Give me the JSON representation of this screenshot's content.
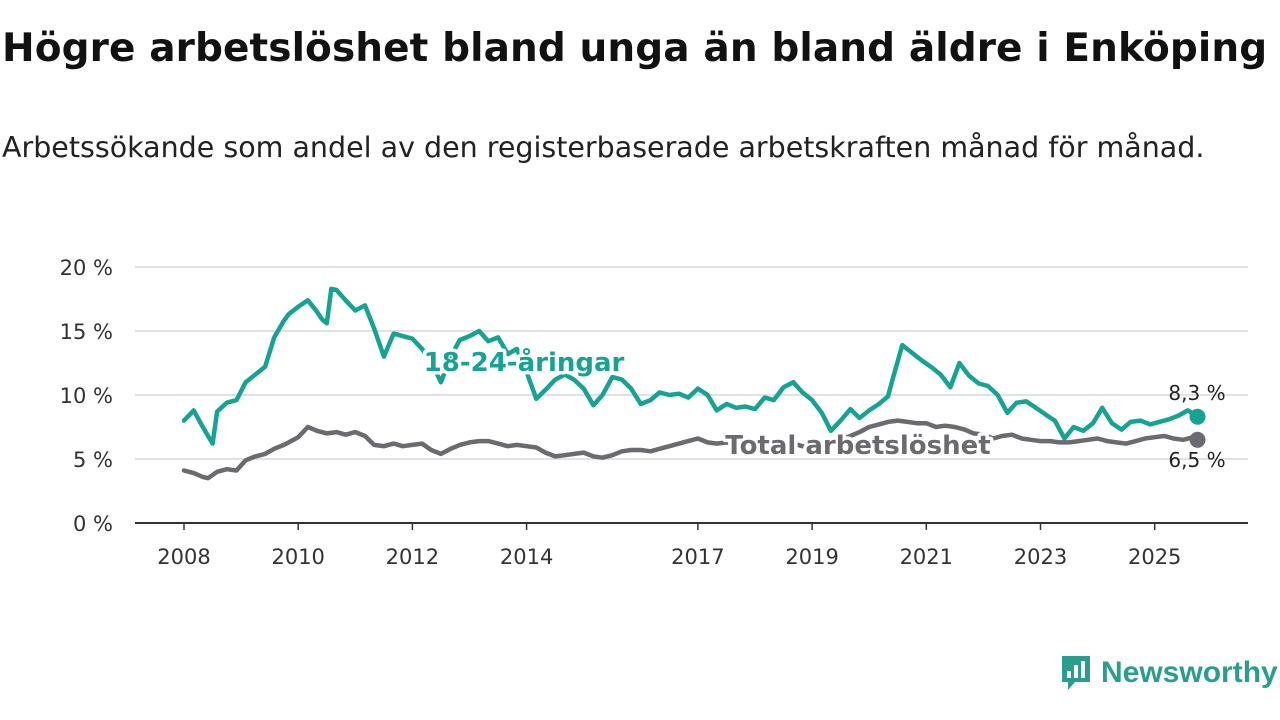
{
  "title": "Högre arbetslöshet bland unga än bland äldre i Enköping",
  "subtitle": "Arbetssökande som andel av den registerbaserade arbetskraften månad för månad.",
  "brand": {
    "name": "Newsworthy",
    "icon": "newsworthy-logo-icon"
  },
  "chart_data": {
    "type": "line",
    "xlim": [
      2008.0,
      2026.3
    ],
    "ylim": [
      0,
      20
    ],
    "y_ticks": [
      {
        "value": 0,
        "label": "0 %"
      },
      {
        "value": 5,
        "label": "5 %"
      },
      {
        "value": 10,
        "label": "10 %"
      },
      {
        "value": 15,
        "label": "15 %"
      },
      {
        "value": 20,
        "label": "20 %"
      }
    ],
    "x_ticks": [
      {
        "value": 2008,
        "label": "2008"
      },
      {
        "value": 2010,
        "label": "2010"
      },
      {
        "value": 2012,
        "label": "2012"
      },
      {
        "value": 2014,
        "label": "2014"
      },
      {
        "value": 2017,
        "label": "2017"
      },
      {
        "value": 2019,
        "label": "2019"
      },
      {
        "value": 2021,
        "label": "2021"
      },
      {
        "value": 2023,
        "label": "2023"
      },
      {
        "value": 2025,
        "label": "2025"
      }
    ],
    "grid": true,
    "series": [
      {
        "name": "18-24-åringar",
        "color": "#16a394",
        "end_label": "8,3 %",
        "x": [
          2008.0,
          2008.17,
          2008.33,
          2008.5,
          2008.58,
          2008.75,
          2008.92,
          2009.08,
          2009.25,
          2009.42,
          2009.58,
          2009.75,
          2009.83,
          2010.0,
          2010.17,
          2010.33,
          2010.42,
          2010.5,
          2010.58,
          2010.67,
          2010.83,
          2011.0,
          2011.17,
          2011.33,
          2011.5,
          2011.67,
          2011.83,
          2012.0,
          2012.17,
          2012.33,
          2012.5,
          2012.67,
          2012.83,
          2013.0,
          2013.17,
          2013.33,
          2013.5,
          2013.67,
          2013.83,
          2014.0,
          2014.17,
          2014.33,
          2014.5,
          2014.67,
          2014.83,
          2015.0,
          2015.17,
          2015.33,
          2015.5,
          2015.67,
          2015.83,
          2016.0,
          2016.17,
          2016.33,
          2016.5,
          2016.67,
          2016.83,
          2017.0,
          2017.17,
          2017.33,
          2017.5,
          2017.67,
          2017.83,
          2018.0,
          2018.17,
          2018.33,
          2018.5,
          2018.67,
          2018.83,
          2019.0,
          2019.17,
          2019.33,
          2019.5,
          2019.67,
          2019.83,
          2020.0,
          2020.17,
          2020.33,
          2020.42,
          2020.58,
          2020.75,
          2020.92,
          2021.08,
          2021.25,
          2021.42,
          2021.58,
          2021.75,
          2021.92,
          2022.08,
          2022.25,
          2022.42,
          2022.58,
          2022.75,
          2022.92,
          2023.08,
          2023.25,
          2023.42,
          2023.58,
          2023.75,
          2023.92,
          2024.08,
          2024.25,
          2024.42,
          2024.58,
          2024.75,
          2024.92,
          2025.08,
          2025.25,
          2025.42,
          2025.58,
          2025.75
        ],
        "y": [
          8.0,
          8.8,
          7.5,
          6.2,
          8.7,
          9.4,
          9.6,
          11.0,
          11.6,
          12.2,
          14.5,
          15.8,
          16.3,
          16.9,
          17.4,
          16.5,
          15.9,
          15.6,
          18.3,
          18.2,
          17.4,
          16.6,
          17.0,
          15.2,
          13.0,
          14.8,
          14.6,
          14.4,
          13.6,
          12.6,
          11.0,
          13.0,
          14.3,
          14.6,
          15.0,
          14.2,
          14.5,
          13.2,
          13.6,
          11.8,
          9.7,
          10.4,
          11.2,
          11.6,
          11.2,
          10.5,
          9.2,
          10.0,
          11.4,
          11.2,
          10.5,
          9.3,
          9.6,
          10.2,
          10.0,
          10.1,
          9.8,
          10.5,
          10.0,
          8.8,
          9.3,
          9.0,
          9.1,
          8.9,
          9.8,
          9.6,
          10.6,
          11.0,
          10.2,
          9.6,
          8.6,
          7.2,
          8.0,
          8.9,
          8.2,
          8.8,
          9.3,
          9.9,
          11.4,
          13.9,
          13.3,
          12.7,
          12.2,
          11.6,
          10.6,
          12.5,
          11.5,
          10.9,
          10.7,
          10.0,
          8.6,
          9.4,
          9.5,
          9.0,
          8.5,
          8.0,
          6.6,
          7.5,
          7.2,
          7.8,
          9.0,
          7.8,
          7.3,
          7.9,
          8.0,
          7.7,
          7.9,
          8.1,
          8.4,
          8.8,
          8.3
        ]
      },
      {
        "name": "Total arbetslöshet",
        "color": "#6b6b6f",
        "end_label": "6,5 %",
        "x": [
          2008.0,
          2008.17,
          2008.33,
          2008.42,
          2008.58,
          2008.75,
          2008.92,
          2009.08,
          2009.25,
          2009.42,
          2009.58,
          2009.75,
          2009.92,
          2010.0,
          2010.17,
          2010.33,
          2010.5,
          2010.67,
          2010.83,
          2011.0,
          2011.17,
          2011.33,
          2011.5,
          2011.67,
          2011.83,
          2012.0,
          2012.17,
          2012.33,
          2012.5,
          2012.67,
          2012.83,
          2013.0,
          2013.17,
          2013.33,
          2013.5,
          2013.67,
          2013.83,
          2014.0,
          2014.17,
          2014.33,
          2014.5,
          2014.67,
          2014.83,
          2015.0,
          2015.17,
          2015.33,
          2015.5,
          2015.67,
          2015.83,
          2016.0,
          2016.17,
          2016.33,
          2016.5,
          2016.67,
          2016.83,
          2017.0,
          2017.17,
          2017.33,
          2017.5,
          2017.67,
          2017.83,
          2018.0,
          2018.17,
          2018.33,
          2018.5,
          2018.67,
          2018.83,
          2019.0,
          2019.17,
          2019.33,
          2019.5,
          2019.67,
          2019.83,
          2020.0,
          2020.17,
          2020.33,
          2020.5,
          2020.67,
          2020.83,
          2021.0,
          2021.17,
          2021.33,
          2021.5,
          2021.67,
          2021.83,
          2022.0,
          2022.17,
          2022.33,
          2022.5,
          2022.67,
          2022.83,
          2023.0,
          2023.17,
          2023.33,
          2023.5,
          2023.67,
          2023.83,
          2024.0,
          2024.17,
          2024.33,
          2024.5,
          2024.67,
          2024.83,
          2025.0,
          2025.17,
          2025.33,
          2025.5,
          2025.67,
          2025.75
        ],
        "y": [
          4.1,
          3.9,
          3.6,
          3.5,
          4.0,
          4.2,
          4.1,
          4.9,
          5.2,
          5.4,
          5.8,
          6.1,
          6.5,
          6.7,
          7.5,
          7.2,
          7.0,
          7.1,
          6.9,
          7.1,
          6.8,
          6.1,
          6.0,
          6.2,
          6.0,
          6.1,
          6.2,
          5.7,
          5.4,
          5.8,
          6.1,
          6.3,
          6.4,
          6.4,
          6.2,
          6.0,
          6.1,
          6.0,
          5.9,
          5.5,
          5.2,
          5.3,
          5.4,
          5.5,
          5.2,
          5.1,
          5.3,
          5.6,
          5.7,
          5.7,
          5.6,
          5.8,
          6.0,
          6.2,
          6.4,
          6.6,
          6.3,
          6.2,
          6.3,
          6.1,
          6.0,
          6.0,
          6.1,
          6.0,
          6.1,
          6.2,
          6.0,
          5.9,
          6.1,
          6.3,
          6.5,
          6.8,
          7.1,
          7.5,
          7.7,
          7.9,
          8.0,
          7.9,
          7.8,
          7.8,
          7.5,
          7.6,
          7.5,
          7.3,
          7.0,
          6.9,
          6.6,
          6.8,
          6.9,
          6.6,
          6.5,
          6.4,
          6.4,
          6.3,
          6.3,
          6.4,
          6.5,
          6.6,
          6.4,
          6.3,
          6.2,
          6.4,
          6.6,
          6.7,
          6.8,
          6.6,
          6.5,
          6.7,
          6.5
        ]
      }
    ],
    "labels": {
      "young": "18-24-åringar",
      "total": "Total arbetslöshet"
    }
  }
}
